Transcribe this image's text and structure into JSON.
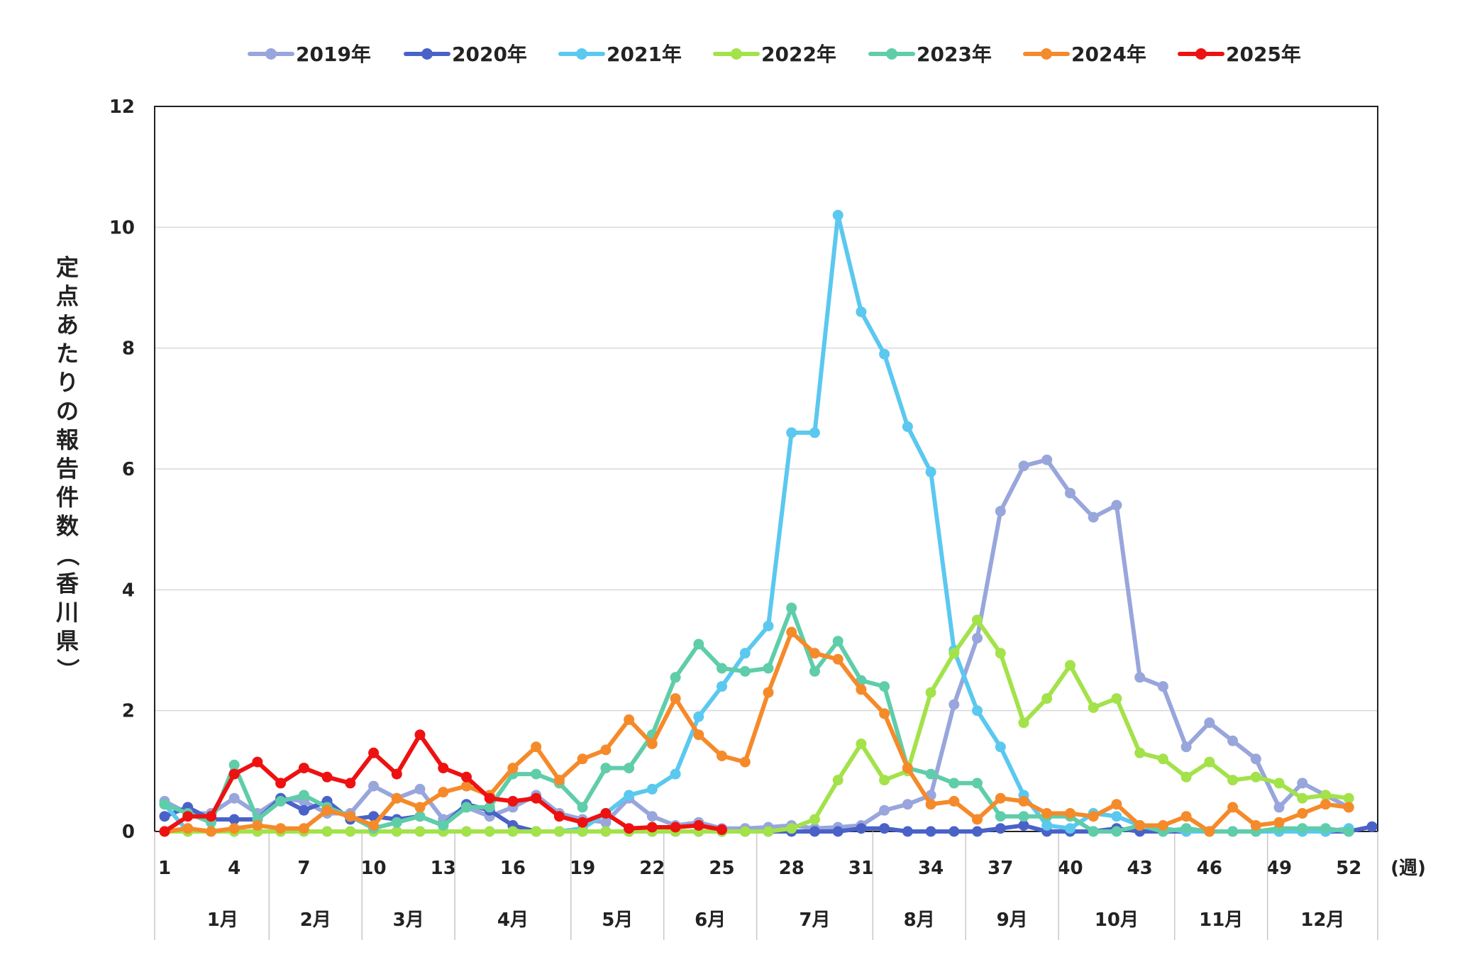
{
  "chart_data": {
    "type": "line",
    "ylabel": "定点あたりの報告件数（香川県）",
    "xunit": "(週)",
    "ylim": [
      0,
      12
    ],
    "yticks": [
      0,
      2,
      4,
      6,
      8,
      10,
      12
    ],
    "xticks": [
      1,
      4,
      7,
      10,
      13,
      16,
      19,
      22,
      25,
      28,
      31,
      34,
      37,
      40,
      43,
      46,
      49,
      52
    ],
    "months": [
      {
        "label": "1月",
        "start": 1,
        "end": 5
      },
      {
        "label": "2月",
        "start": 5,
        "end": 9
      },
      {
        "label": "3月",
        "start": 9,
        "end": 13
      },
      {
        "label": "4月",
        "start": 13,
        "end": 18
      },
      {
        "label": "5月",
        "start": 18,
        "end": 22
      },
      {
        "label": "6月",
        "start": 22,
        "end": 26
      },
      {
        "label": "7月",
        "start": 26,
        "end": 31
      },
      {
        "label": "8月",
        "start": 31,
        "end": 35
      },
      {
        "label": "9月",
        "start": 35,
        "end": 39
      },
      {
        "label": "10月",
        "start": 39,
        "end": 44
      },
      {
        "label": "11月",
        "start": 44,
        "end": 48
      },
      {
        "label": "12月",
        "start": 48,
        "end": 52
      }
    ],
    "series": [
      {
        "name": "2019年",
        "color": "#98a6dc",
        "x_start": 1,
        "values": [
          0.5,
          0.3,
          0.3,
          0.55,
          0.3,
          0.55,
          0.5,
          0.3,
          0.3,
          0.75,
          0.55,
          0.7,
          0.2,
          0.4,
          0.25,
          0.4,
          0.6,
          0.3,
          0.2,
          0.15,
          0.55,
          0.25,
          0.1,
          0.15,
          0.05,
          0.05,
          0.07,
          0.1,
          0.05,
          0.07,
          0.1,
          0.35,
          0.45,
          0.6,
          2.1,
          3.2,
          5.3,
          6.05,
          6.15,
          5.6,
          5.2,
          5.4,
          2.55,
          2.4,
          1.4,
          1.8,
          1.5,
          1.2,
          0.4,
          0.8,
          0.6,
          0.4
        ]
      },
      {
        "name": "2020年",
        "color": "#4a62c8",
        "x_start": 1,
        "values": [
          0.25,
          0.4,
          0.2,
          0.2,
          0.2,
          0.55,
          0.35,
          0.5,
          0.2,
          0.25,
          0.2,
          0.25,
          0.1,
          0.45,
          0.35,
          0.1,
          0.0,
          0.0,
          0.0,
          0.0,
          0.0,
          0.0,
          0.0,
          0.0,
          0.0,
          0.0,
          0.0,
          0.0,
          0.0,
          0.0,
          0.05,
          0.05,
          0.0,
          0.0,
          0.0,
          0.0,
          0.05,
          0.1,
          0.0,
          0.0,
          0.0,
          0.05,
          0.0,
          0.0,
          0.0,
          0.0,
          0.0,
          0.0,
          0.0,
          0.0,
          0.0,
          0.0,
          0.08
        ]
      },
      {
        "name": "2021年",
        "color": "#5bc8ef",
        "x_start": 1,
        "values": [
          0.45,
          0.0,
          0.0,
          0.0,
          0.0,
          0.0,
          0.0,
          0.0,
          0.0,
          0.0,
          0.0,
          0.0,
          0.0,
          0.0,
          0.0,
          0.0,
          0.0,
          0.0,
          0.05,
          0.3,
          0.6,
          0.7,
          0.95,
          1.9,
          2.4,
          2.95,
          3.4,
          6.6,
          6.6,
          10.2,
          8.6,
          7.9,
          6.7,
          5.95,
          3.0,
          2.0,
          1.4,
          0.6,
          0.1,
          0.05,
          0.3,
          0.25,
          0.1,
          0.05,
          0.0,
          0.0,
          0.0,
          0.0,
          0.0,
          0.0,
          0.0,
          0.05
        ]
      },
      {
        "name": "2022年",
        "color": "#a3e24a",
        "x_start": 1,
        "values": [
          0.0,
          0.0,
          0.0,
          0.0,
          0.0,
          0.0,
          0.0,
          0.0,
          0.0,
          0.0,
          0.0,
          0.0,
          0.0,
          0.0,
          0.0,
          0.0,
          0.0,
          0.0,
          0.0,
          0.0,
          0.0,
          0.0,
          0.0,
          0.0,
          0.0,
          0.0,
          0.0,
          0.05,
          0.2,
          0.85,
          1.45,
          0.85,
          1.0,
          2.3,
          2.95,
          3.5,
          2.95,
          1.8,
          2.2,
          2.75,
          2.05,
          2.2,
          1.3,
          1.2,
          0.9,
          1.15,
          0.85,
          0.9,
          0.8,
          0.55,
          0.6,
          0.55
        ]
      },
      {
        "name": "2023年",
        "color": "#5fcda9",
        "x_start": 1,
        "values": [
          0.45,
          0.3,
          0.15,
          1.1,
          0.2,
          0.5,
          0.6,
          0.4,
          0.25,
          0.05,
          0.15,
          0.25,
          0.1,
          0.4,
          0.4,
          0.95,
          0.95,
          0.8,
          0.4,
          1.05,
          1.05,
          1.6,
          2.55,
          3.1,
          2.7,
          2.65,
          2.7,
          3.7,
          2.65,
          3.15,
          2.5,
          2.4,
          1.05,
          0.95,
          0.8,
          0.8,
          0.25,
          0.25,
          0.25,
          0.25,
          0.0,
          0.0,
          0.1,
          0.0,
          0.05,
          0.0,
          0.0,
          0.0,
          0.05,
          0.05,
          0.05,
          0.0
        ]
      },
      {
        "name": "2024年",
        "color": "#f58a2a",
        "x_start": 1,
        "values": [
          0.0,
          0.05,
          0.0,
          0.05,
          0.1,
          0.05,
          0.05,
          0.35,
          0.25,
          0.1,
          0.55,
          0.4,
          0.65,
          0.75,
          0.6,
          1.05,
          1.4,
          0.85,
          1.2,
          1.35,
          1.85,
          1.45,
          2.2,
          1.6,
          1.25,
          1.15,
          2.3,
          3.3,
          2.95,
          2.85,
          2.35,
          1.95,
          1.05,
          0.45,
          0.5,
          0.2,
          0.55,
          0.5,
          0.3,
          0.3,
          0.25,
          0.45,
          0.1,
          0.1,
          0.25,
          0.0,
          0.4,
          0.1,
          0.15,
          0.3,
          0.45,
          0.4
        ]
      },
      {
        "name": "2025年",
        "color": "#ee1111",
        "x_start": 1,
        "values": [
          0.0,
          0.25,
          0.25,
          0.95,
          1.15,
          0.8,
          1.05,
          0.9,
          0.8,
          1.3,
          0.95,
          1.6,
          1.05,
          0.9,
          0.55,
          0.5,
          0.55,
          0.25,
          0.15,
          0.3,
          0.05,
          0.07,
          0.07,
          0.1,
          0.03
        ]
      }
    ]
  }
}
